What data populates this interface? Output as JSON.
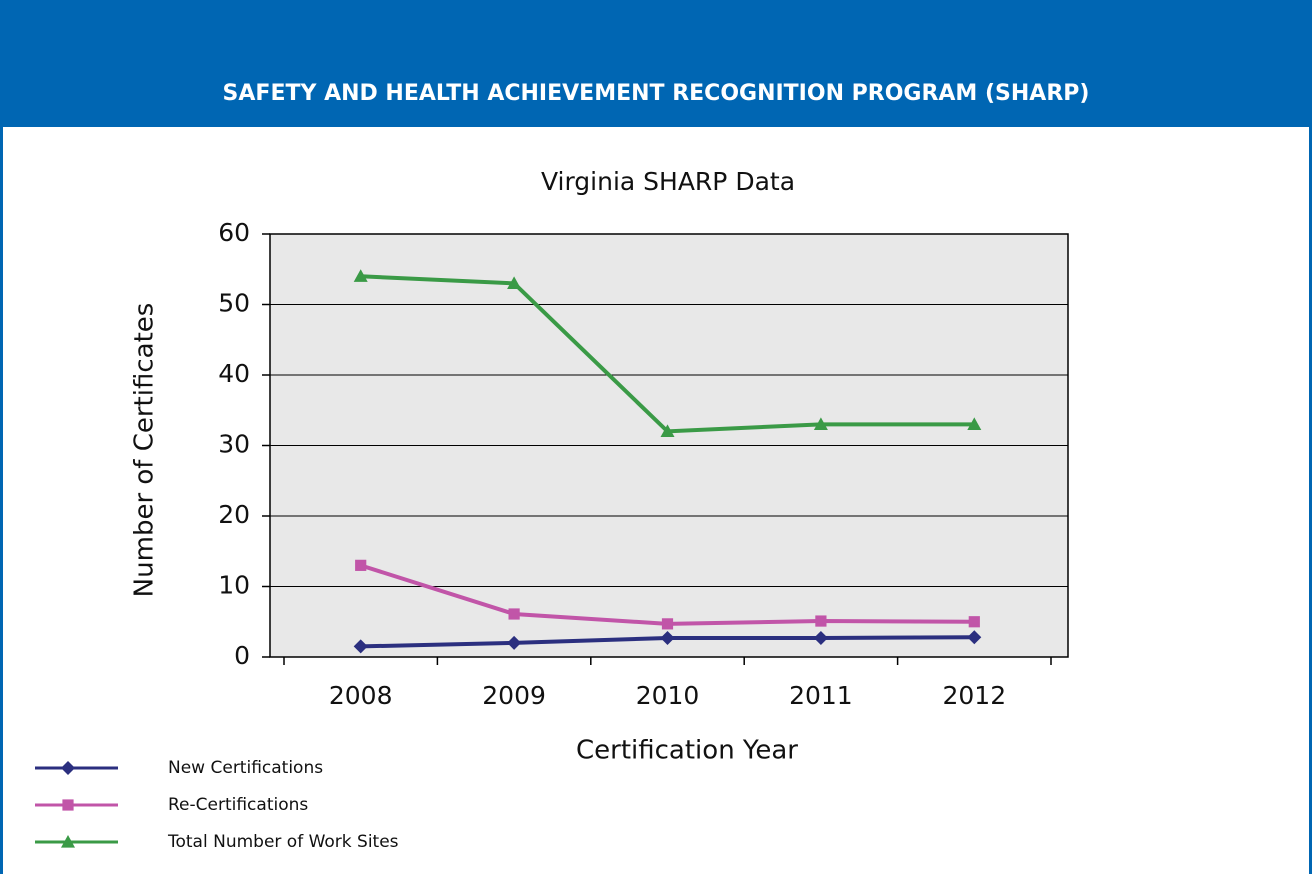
{
  "header": {
    "title": "SAFETY AND HEALTH ACHIEVEMENT RECOGNITION PROGRAM (SHARP)"
  },
  "chart_data": {
    "type": "line",
    "title": "Virginia SHARP Data",
    "x_label": "Certification Year",
    "y_label": "Number of Certificates",
    "categories": [
      "2008",
      "2009",
      "2010",
      "2011",
      "2012"
    ],
    "series": [
      {
        "name": "New Certifications",
        "color": "#2b2f7f",
        "marker": "diamond",
        "values": [
          1.5,
          2,
          2.7,
          2.7,
          2.8
        ]
      },
      {
        "name": "Re-Certifications",
        "color": "#c155a8",
        "marker": "square",
        "values": [
          13,
          6.1,
          4.7,
          5.1,
          5
        ]
      },
      {
        "name": "Total Number of Work Sites",
        "color": "#3a9a46",
        "marker": "triangle",
        "values": [
          54,
          53,
          32,
          33,
          33
        ]
      }
    ],
    "ylim": [
      0,
      60
    ],
    "yticks": [
      0,
      10,
      20,
      30,
      40,
      50,
      60
    ],
    "grid": true
  }
}
